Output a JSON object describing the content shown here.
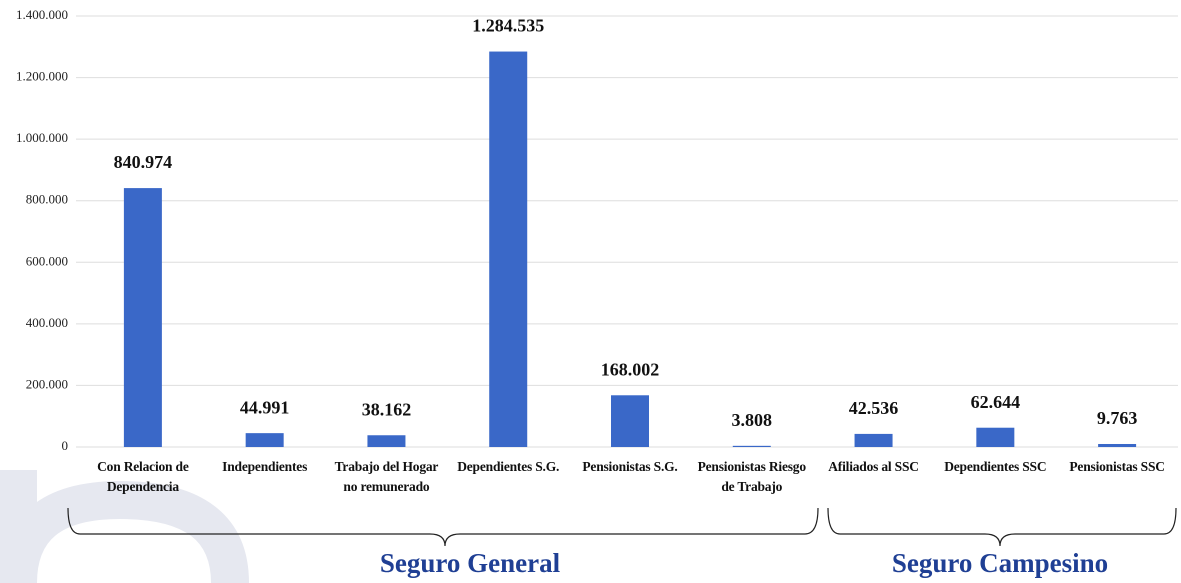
{
  "chart_data": {
    "type": "bar",
    "categories": [
      "Con Relacion de Dependencia",
      "Independientes",
      "Trabajo del Hogar no remunerado",
      "Dependientes S.G.",
      "Pensionistas S.G.",
      "Pensionistas Riesgo de Trabajo",
      "Afiliados al SSC",
      "Dependientes SSC",
      "Pensionistas SSC"
    ],
    "values": [
      840974,
      44991,
      38162,
      1284535,
      168002,
      3808,
      42536,
      62644,
      9763
    ],
    "value_labels": [
      "840.974",
      "44.991",
      "38.162",
      "1.284.535",
      "168.002",
      "3.808",
      "42.536",
      "62.644",
      "9.763"
    ],
    "color": "#3a68c8",
    "ylim": [
      0,
      1400000
    ],
    "yticks": [
      0,
      {
        "value": 200000,
        "label": "200.000"
      },
      {
        "value": 400000,
        "label": "400.000"
      },
      {
        "value": 600000,
        "label": "600.000"
      },
      {
        "value": 800000,
        "label": "800.000"
      },
      {
        "value": 1000000,
        "label": "1.000.000"
      },
      {
        "value": 1200000,
        "label": "1.200.000"
      },
      {
        "value": 1400000,
        "label": "1.400.000"
      }
    ],
    "grid": true,
    "annotations": [
      "Seguro General",
      "Seguro Campesino"
    ]
  }
}
